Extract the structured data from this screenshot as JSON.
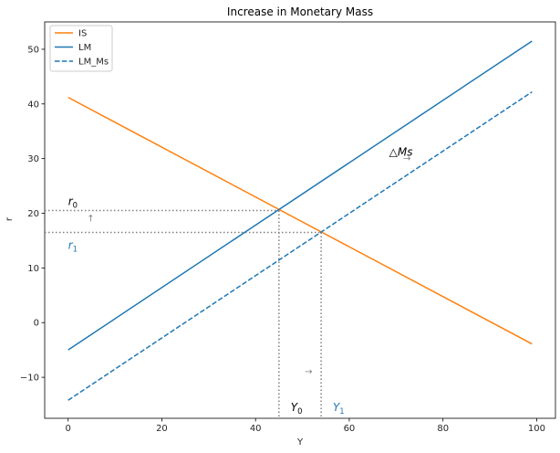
{
  "chart_data": {
    "type": "line",
    "title": "Increase in Monetary Mass",
    "xlabel": "Y",
    "ylabel": "r",
    "xlim": [
      -5,
      104
    ],
    "ylim": [
      -17.5,
      55
    ],
    "xticks": [
      0,
      20,
      40,
      60,
      80,
      100
    ],
    "yticks": [
      -10,
      0,
      10,
      20,
      30,
      40,
      50
    ],
    "grid": false,
    "legend_position": "top-left",
    "series": [
      {
        "name": "IS",
        "color": "#ff7f0e",
        "dash": "solid",
        "x": [
          0,
          99
        ],
        "y": [
          41.2,
          -3.9
        ]
      },
      {
        "name": "LM",
        "color": "#1f77b4",
        "dash": "solid",
        "x": [
          0,
          99
        ],
        "y": [
          -5.0,
          51.5
        ]
      },
      {
        "name": "LM_Ms",
        "color": "#1f77b4",
        "dash": "dashed",
        "x": [
          0,
          99
        ],
        "y": [
          -14.2,
          42.2
        ]
      }
    ],
    "equilibria": [
      {
        "label": "r₀ / Y₀",
        "x": 45,
        "y": 20.5
      },
      {
        "label": "r₁ / Y₁",
        "x": 54,
        "y": 16.5
      }
    ],
    "annotations": {
      "r0": {
        "base": "r",
        "sub": "0",
        "color": "#000000",
        "x": 0,
        "y": 21.5
      },
      "r1": {
        "base": "r",
        "sub": "1",
        "color": "#1f77b4",
        "x": 0,
        "y": 13.5
      },
      "y0": {
        "base": "Y",
        "sub": "0",
        "color": "#000000",
        "x": 47.5,
        "y": -16.2
      },
      "y1": {
        "base": "Y",
        "sub": "1",
        "color": "#1f77b4",
        "x": 56.5,
        "y": -16.2
      },
      "delta_ms": {
        "text": "△Ms",
        "color": "#000000",
        "x": 68.5,
        "y": 30.5
      },
      "arrow_up": {
        "text": "↑",
        "color": "#808080",
        "x": 4,
        "y": 18.5
      },
      "arrow_right_bottom": {
        "text": "→",
        "color": "#808080",
        "x": 50.5,
        "y": -9.5
      },
      "arrow_right_top": {
        "text": "→",
        "color": "#808080",
        "x": 71.5,
        "y": 29.5
      }
    }
  }
}
